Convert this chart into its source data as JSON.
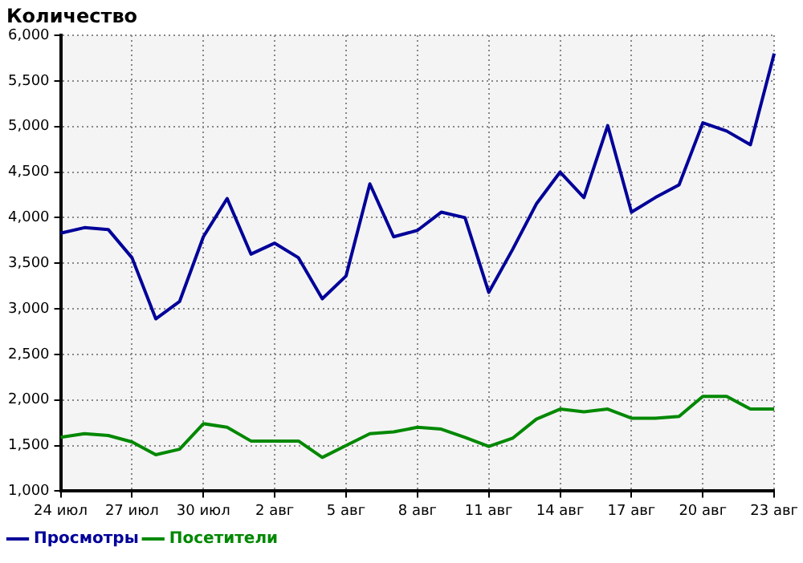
{
  "chart_data": {
    "type": "line",
    "ylabel": "Количество",
    "categories": [
      "24 июл",
      null,
      null,
      "27 июл",
      null,
      null,
      "30 июл",
      null,
      null,
      "2 авг",
      null,
      null,
      "5 авг",
      null,
      null,
      "8 авг",
      null,
      null,
      "11 авг",
      null,
      null,
      "14 авг",
      null,
      null,
      "17 авг",
      null,
      null,
      "20 авг",
      null,
      null,
      "23 авг"
    ],
    "series": [
      {
        "name": "Просмотры",
        "color": "#000099",
        "values": [
          3830,
          3890,
          3870,
          3560,
          2890,
          3080,
          3790,
          4210,
          3600,
          3720,
          3560,
          3110,
          3360,
          4370,
          3790,
          3860,
          4060,
          4000,
          3180,
          3650,
          4150,
          4500,
          4220,
          5010,
          4060,
          4220,
          4360,
          5040,
          4950,
          4800,
          5800
        ]
      },
      {
        "name": "Посетители",
        "color": "#008800",
        "values": [
          1590,
          1630,
          1610,
          1540,
          1400,
          1460,
          1740,
          1700,
          1550,
          1550,
          1550,
          1370,
          1500,
          1630,
          1650,
          1700,
          1680,
          1590,
          1490,
          1580,
          1790,
          1900,
          1870,
          1900,
          1800,
          1800,
          1820,
          2040,
          2040,
          1900,
          1900
        ]
      }
    ],
    "ylim": [
      1000,
      6000
    ],
    "yticks": [
      {
        "value": 1000,
        "label": "1,000"
      },
      {
        "value": 1500,
        "label": "1,500"
      },
      {
        "value": 2000,
        "label": "2,000"
      },
      {
        "value": 2500,
        "label": "2,500"
      },
      {
        "value": 3000,
        "label": "3,000"
      },
      {
        "value": 3500,
        "label": "3,500"
      },
      {
        "value": 4000,
        "label": "4,000"
      },
      {
        "value": 4500,
        "label": "4,500"
      },
      {
        "value": 5000,
        "label": "5,000"
      },
      {
        "value": 5500,
        "label": "5,500"
      },
      {
        "value": 6000,
        "label": "6,000"
      }
    ],
    "grid": true,
    "legend": "bottom left",
    "marker": "none",
    "line_style": "solid"
  }
}
